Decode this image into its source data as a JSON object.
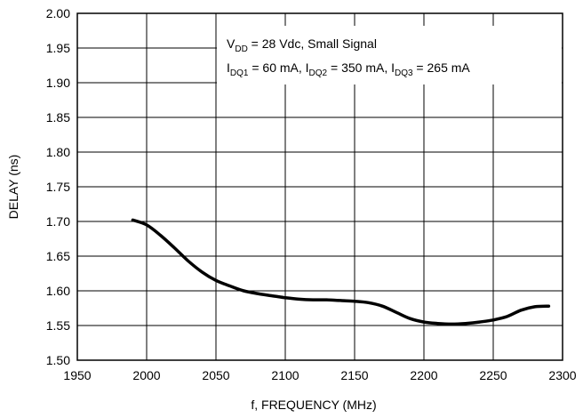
{
  "chart_data": {
    "type": "line",
    "xlabel": "f, FREQUENCY (MHz)",
    "ylabel": "DELAY (ns)",
    "xlim": [
      1950,
      2300
    ],
    "ylim": [
      1.5,
      2.0
    ],
    "x_ticks": [
      "1950",
      "2000",
      "2050",
      "2100",
      "2150",
      "2200",
      "2250",
      "2300"
    ],
    "y_ticks": [
      "1.50",
      "1.55",
      "1.60",
      "1.65",
      "1.70",
      "1.75",
      "1.80",
      "1.85",
      "1.90",
      "1.95",
      "2.00"
    ],
    "grid": true,
    "annotation": {
      "line1": {
        "main": "V",
        "sub": "DD",
        "rest": " = 28 Vdc, Small Signal"
      },
      "line2": [
        {
          "main": "I",
          "sub": "DQ1",
          "rest": " = 60 mA, "
        },
        {
          "main": "I",
          "sub": "DQ2",
          "rest": " = 350 mA, "
        },
        {
          "main": "I",
          "sub": "DQ3",
          "rest": " = 265 mA"
        }
      ]
    },
    "series": [
      {
        "x": [
          1990,
          2000,
          2010,
          2020,
          2030,
          2040,
          2050,
          2060,
          2070,
          2080,
          2090,
          2100,
          2110,
          2120,
          2130,
          2140,
          2150,
          2160,
          2170,
          2180,
          2190,
          2200,
          2210,
          2220,
          2230,
          2240,
          2250,
          2260,
          2270,
          2280,
          2290
        ],
        "y": [
          1.702,
          1.695,
          1.68,
          1.662,
          1.643,
          1.627,
          1.615,
          1.607,
          1.6,
          1.596,
          1.593,
          1.59,
          1.588,
          1.587,
          1.587,
          1.586,
          1.585,
          1.583,
          1.578,
          1.569,
          1.56,
          1.555,
          1.553,
          1.552,
          1.553,
          1.555,
          1.558,
          1.563,
          1.572,
          1.577,
          1.578
        ],
        "color": "#000000"
      }
    ]
  }
}
